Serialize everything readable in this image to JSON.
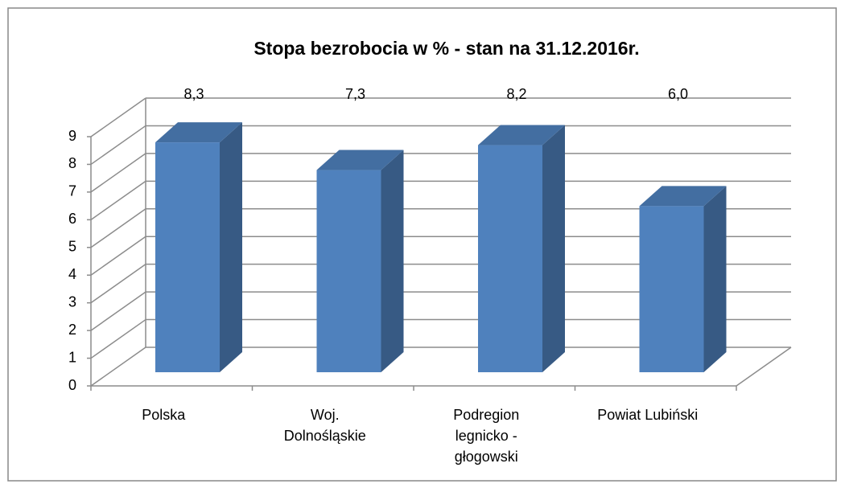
{
  "chart_data": {
    "type": "bar3d",
    "title": "Stopa bezrobocia w % - stan na 31.12.2016r.",
    "categories": [
      "Polska",
      "Woj.\nDolnośląskie",
      "Podregion\nlegnicko -\ngłogowski",
      "Powiat Lubiński"
    ],
    "values": [
      8.3,
      7.3,
      8.2,
      6.0
    ],
    "value_labels": [
      "8,3",
      "7,3",
      "8,2",
      "6,0"
    ],
    "color": "#4f81bd",
    "ylim": [
      0,
      9
    ],
    "yticks": [
      0,
      1,
      2,
      3,
      4,
      5,
      6,
      7,
      8,
      9
    ],
    "grid": true
  }
}
